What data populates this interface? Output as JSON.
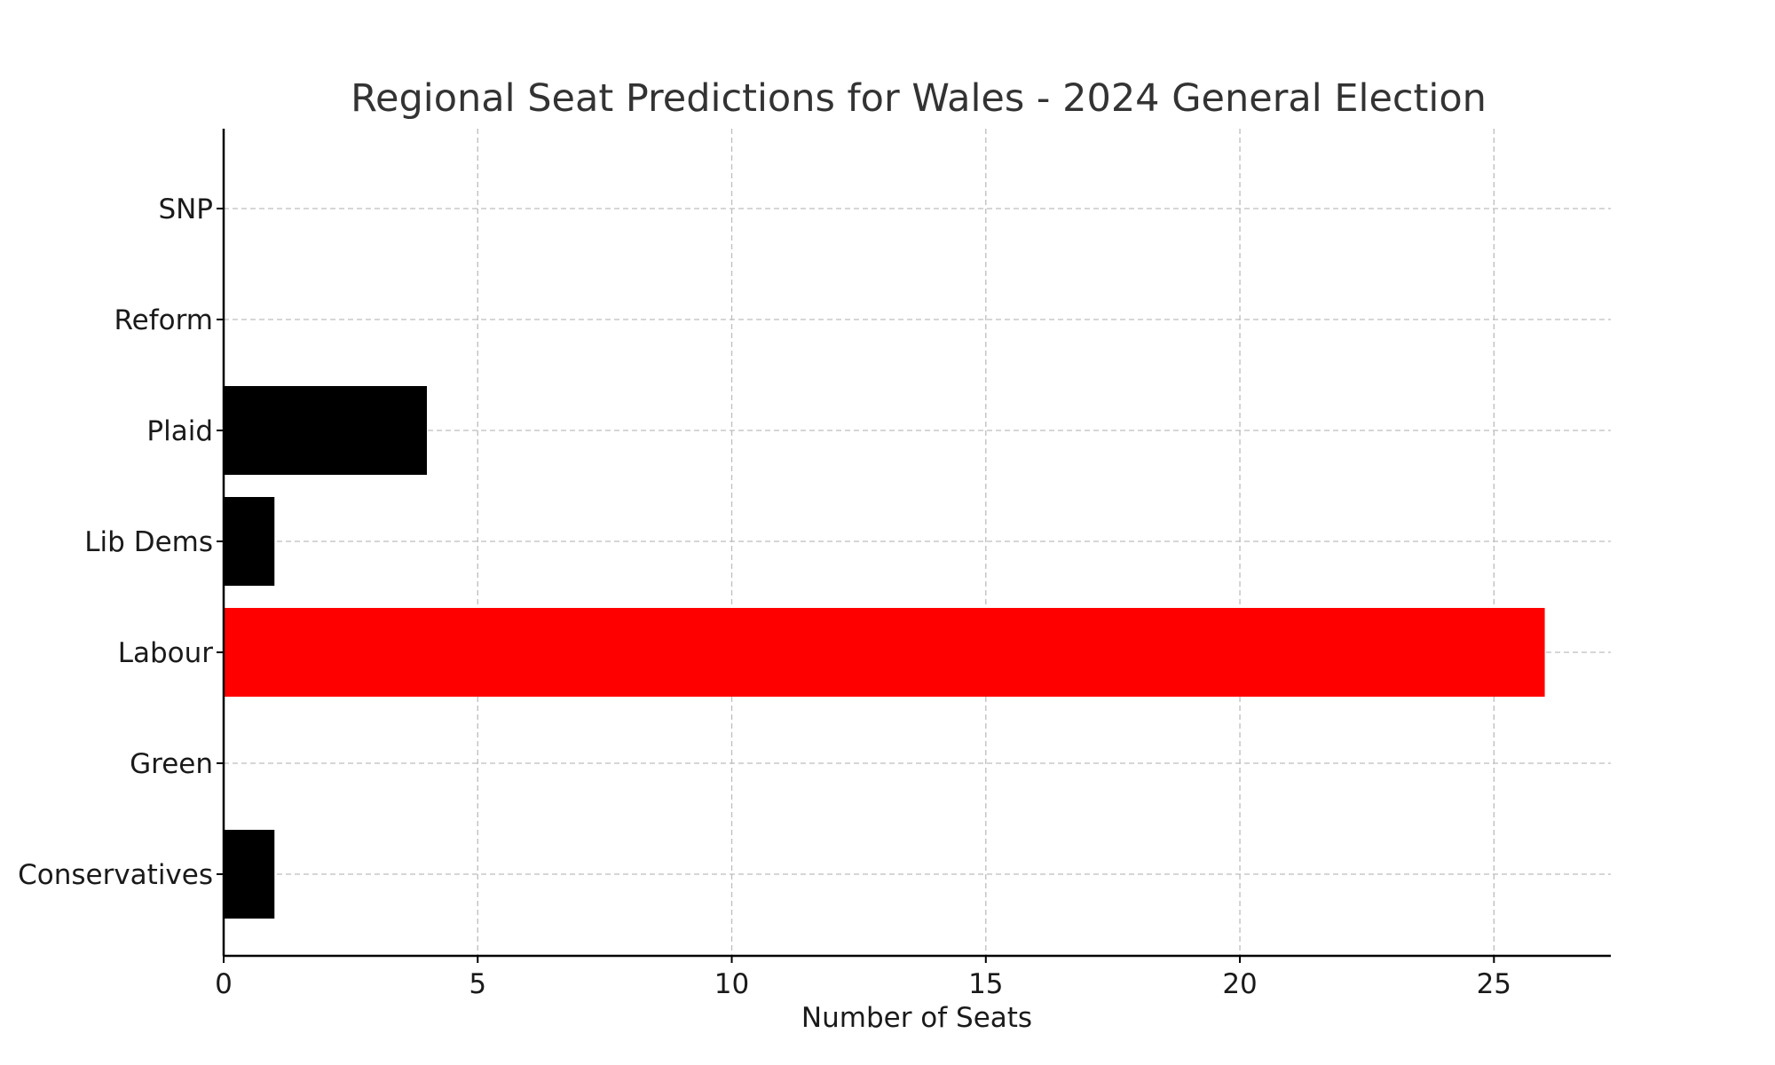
{
  "chart_data": {
    "type": "bar",
    "orientation": "horizontal",
    "title": "Regional Seat Predictions for Wales - 2024 General Election",
    "xlabel": "Number of Seats",
    "ylabel": "",
    "categories": [
      "Conservatives",
      "Green",
      "Labour",
      "Lib Dems",
      "Plaid",
      "Reform",
      "SNP"
    ],
    "values": [
      1,
      0,
      26,
      1,
      4,
      0,
      0
    ],
    "bar_colors": [
      "#000000",
      "#000000",
      "#ff0000",
      "#000000",
      "#000000",
      "#000000",
      "#000000"
    ],
    "xlim": [
      0,
      27.3
    ],
    "xticks": [
      0,
      5,
      10,
      15,
      20,
      25
    ],
    "grid": true,
    "legend": "none"
  }
}
